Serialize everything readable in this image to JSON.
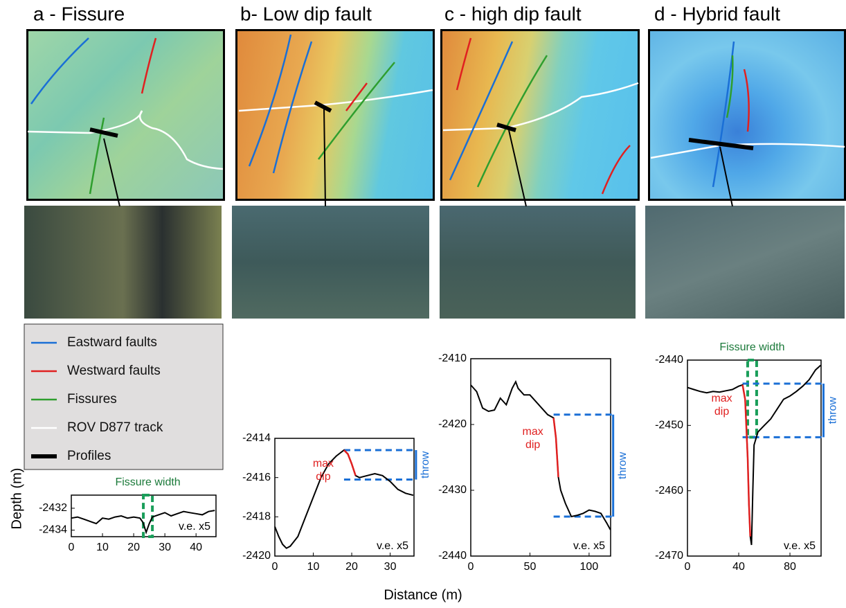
{
  "ylabel": "Depth (m)",
  "xlabel": "Distance (m)",
  "legend": [
    {
      "name": "Eastward faults",
      "color": "#1a6fd6"
    },
    {
      "name": "Westward faults",
      "color": "#e02020"
    },
    {
      "name": "Fissures",
      "color": "#2e9e2e"
    },
    {
      "name": "ROV D877 track",
      "color": "#ffffff"
    },
    {
      "name": "Profiles",
      "color": "#000000"
    }
  ],
  "chart_data": [
    {
      "type": "line",
      "title": "a - Fissure",
      "note": "v.e. x5",
      "x": [
        0,
        2,
        4,
        6,
        8,
        10,
        12,
        14,
        16,
        18,
        20,
        22,
        23,
        24,
        25,
        26,
        28,
        30,
        32,
        34,
        36,
        38,
        40,
        42,
        44,
        46
      ],
      "values": [
        -2432.9,
        -2432.8,
        -2433.0,
        -2433.2,
        -2433.4,
        -2432.9,
        -2433.0,
        -2432.8,
        -2432.7,
        -2432.9,
        -2432.8,
        -2432.9,
        -2433.3,
        -2434.2,
        -2433.4,
        -2432.8,
        -2432.6,
        -2432.4,
        -2432.7,
        -2432.5,
        -2432.3,
        -2432.4,
        -2432.5,
        -2432.6,
        -2432.3,
        -2432.2
      ],
      "color": "#000000",
      "xlim": [
        0,
        46.4
      ],
      "xticks": [
        0,
        10,
        20,
        30,
        40
      ],
      "ylim": [
        -2434.6,
        -2430.8
      ],
      "yticks": [
        -2432,
        -2434
      ],
      "fissure_width": {
        "label": "Fissure width",
        "x": [
          23.1,
          26.0
        ],
        "y": [
          -2434.6,
          -2430.8
        ],
        "color": "#1a9e5a"
      }
    },
    {
      "type": "line",
      "title": "b- Low dip fault",
      "note": "v.e. x5",
      "x": [
        0,
        1,
        2,
        3,
        4,
        6,
        8,
        10,
        12,
        14,
        16,
        18,
        19,
        20,
        21,
        22,
        24,
        26,
        28,
        30,
        32,
        34,
        36
      ],
      "values": [
        -2418.5,
        -2419.0,
        -2419.4,
        -2419.6,
        -2419.5,
        -2419.0,
        -2418.0,
        -2417.0,
        -2416.0,
        -2415.3,
        -2414.9,
        -2414.6,
        -2414.8,
        -2415.3,
        -2415.9,
        -2416.0,
        -2415.9,
        -2415.8,
        -2415.9,
        -2416.2,
        -2416.6,
        -2416.8,
        -2416.9
      ],
      "color": "#000000",
      "xlim": [
        0,
        36.2
      ],
      "xticks": [
        0,
        10,
        20,
        30
      ],
      "ylim": [
        -2420,
        -2414
      ],
      "yticks": [
        -2414,
        -2416,
        -2418,
        -2420
      ],
      "max_dip": {
        "label": "max dip",
        "x": [
          18,
          21
        ],
        "color": "#e02020"
      },
      "throw": {
        "label": "throw",
        "x": [
          18,
          36
        ],
        "y": [
          -2414.6,
          -2416.1
        ],
        "color": "#1a6fd6"
      }
    },
    {
      "type": "line",
      "title": "c - high dip fault",
      "note": "v.e. x5",
      "x": [
        0,
        5,
        10,
        15,
        20,
        25,
        30,
        35,
        38,
        40,
        45,
        50,
        55,
        60,
        65,
        70,
        72,
        74,
        76,
        80,
        85,
        90,
        95,
        100,
        105,
        110,
        115,
        118
      ],
      "values": [
        -2414,
        -2415,
        -2417.5,
        -2418,
        -2417.8,
        -2416,
        -2417,
        -2414.5,
        -2413.5,
        -2414.5,
        -2415.5,
        -2415.5,
        -2416.5,
        -2417.5,
        -2418.5,
        -2419,
        -2422,
        -2428,
        -2430,
        -2432,
        -2434,
        -2433.8,
        -2433.5,
        -2433,
        -2433.2,
        -2433.5,
        -2435,
        -2436
      ],
      "color": "#000000",
      "xlim": [
        0,
        118.2
      ],
      "xticks": [
        0,
        50,
        100
      ],
      "ylim": [
        -2440,
        -2410
      ],
      "yticks": [
        -2410,
        -2420,
        -2430,
        -2440
      ],
      "max_dip": {
        "label": "max dip",
        "x": [
          70,
          74
        ],
        "color": "#e02020"
      },
      "throw": {
        "label": "throw",
        "x": [
          70,
          118
        ],
        "y": [
          -2418.5,
          -2434
        ],
        "color": "#1a6fd6"
      }
    },
    {
      "type": "line",
      "title": "d - Hybrid fault",
      "note": "v.e. x5",
      "x": [
        0,
        5,
        10,
        15,
        20,
        25,
        30,
        35,
        40,
        43,
        45,
        47,
        48,
        49,
        50,
        51,
        52,
        55,
        60,
        65,
        70,
        75,
        80,
        85,
        90,
        95,
        100,
        104
      ],
      "values": [
        -2444.2,
        -2444.5,
        -2444.8,
        -2445,
        -2444.8,
        -2444.9,
        -2444.7,
        -2444.5,
        -2444,
        -2443.8,
        -2446,
        -2455,
        -2462,
        -2467,
        -2468.3,
        -2460,
        -2453,
        -2451,
        -2450,
        -2449,
        -2447.5,
        -2446,
        -2445.5,
        -2444.8,
        -2444,
        -2443,
        -2441.5,
        -2440.8
      ],
      "color": "#000000",
      "xlim": [
        0,
        104.3
      ],
      "xticks": [
        0,
        40,
        80
      ],
      "ylim": [
        -2470,
        -2440
      ],
      "yticks": [
        -2440,
        -2450,
        -2460,
        -2470
      ],
      "max_dip": {
        "label": "max dip",
        "x": [
          43,
          49
        ],
        "color": "#e02020"
      },
      "throw": {
        "label": "throw",
        "x": [
          43,
          104
        ],
        "y": [
          -2443.6,
          -2451.8
        ],
        "color": "#1a6fd6"
      },
      "fissure_width": {
        "label": "Fissure width",
        "x": [
          47,
          54
        ],
        "y": [
          -2451.8,
          -2440
        ],
        "color": "#1a9e5a"
      }
    }
  ]
}
